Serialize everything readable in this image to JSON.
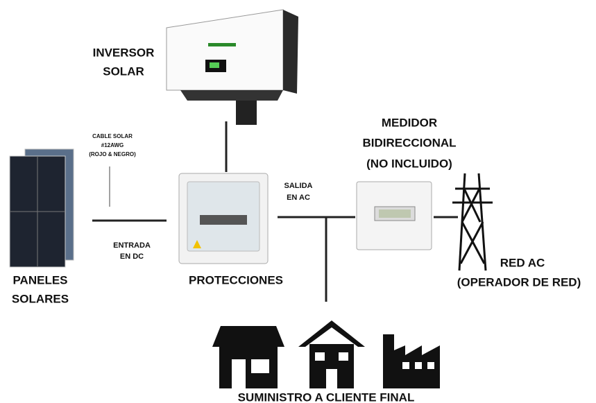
{
  "inverter": {
    "label": [
      "INVERSOR",
      "SOLAR"
    ]
  },
  "panels": {
    "label": [
      "PANELES",
      "SOLARES"
    ]
  },
  "cable": {
    "label": [
      "CABLE SOLAR",
      "#12AWG",
      "(ROJO & NEGRO)"
    ]
  },
  "dc_input": {
    "label": [
      "ENTRADA",
      "EN DC"
    ]
  },
  "protections": {
    "label": "PROTECCIONES"
  },
  "ac_output": {
    "label": [
      "SALIDA",
      "EN AC"
    ]
  },
  "meter": {
    "label": [
      "MEDIDOR",
      "BIDIRECCIONAL",
      "(NO INCLUIDO)"
    ]
  },
  "grid": {
    "label": [
      "RED AC",
      "(OPERADOR DE RED)"
    ]
  },
  "customer": {
    "label": "SUMINISTRO A CLIENTE FINAL"
  }
}
